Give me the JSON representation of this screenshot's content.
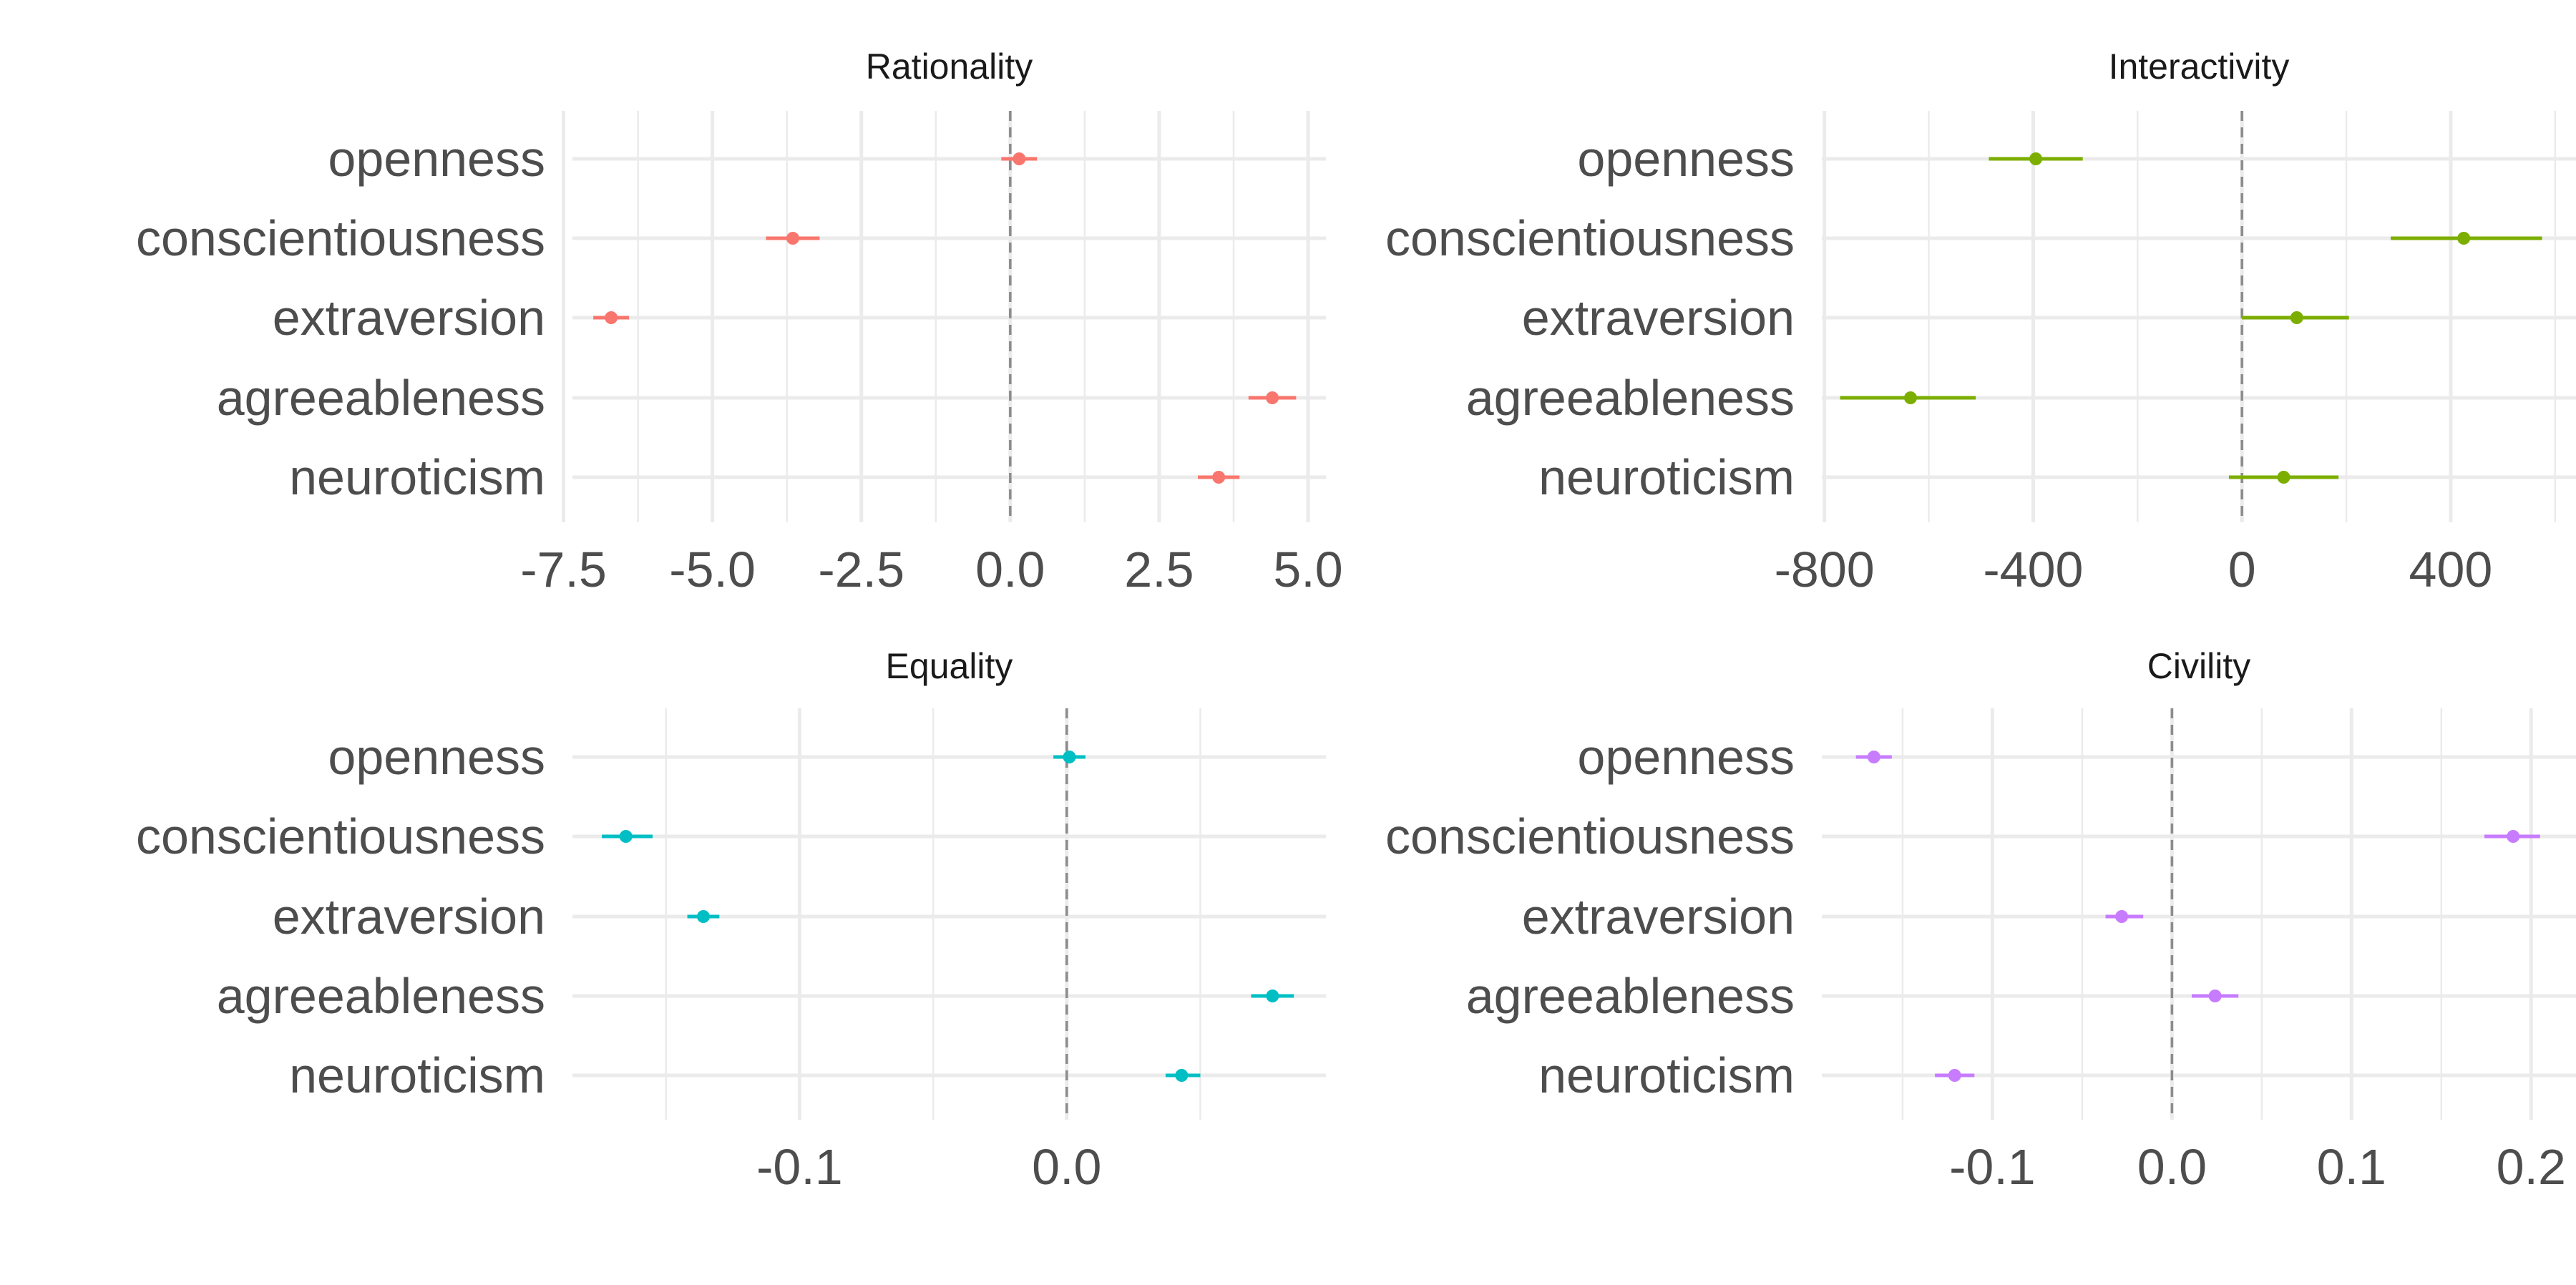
{
  "chart_data": [
    {
      "type": "scatter",
      "title": "Rationality",
      "color": "#F8766D",
      "categories": [
        "openness",
        "conscientiousness",
        "extraversion",
        "agreeableness",
        "neuroticism"
      ],
      "estimates": [
        0.15,
        -3.65,
        -6.7,
        4.4,
        3.5
      ],
      "ci_low": [
        -0.15,
        -4.1,
        -7.0,
        4.0,
        3.15
      ],
      "ci_high": [
        0.45,
        -3.2,
        -6.4,
        4.8,
        3.85
      ],
      "xlim": [
        -7.35,
        5.3
      ],
      "xticks": [
        -7.5,
        -5.0,
        -2.5,
        0.0,
        2.5,
        5.0
      ],
      "xtick_labels": [
        "-7.5",
        "-5.0",
        "-2.5",
        "0.0",
        "2.5",
        "5.0"
      ],
      "minor_ticks": [
        -6.25,
        -3.75,
        -1.25,
        1.25,
        3.75
      ],
      "reference_line": 0
    },
    {
      "type": "scatter",
      "title": "Interactivity",
      "color": "#7CAE00",
      "categories": [
        "openness",
        "conscientiousness",
        "extraversion",
        "agreeableness",
        "neuroticism"
      ],
      "estimates": [
        -395,
        425,
        105,
        -635,
        80
      ],
      "ci_low": [
        -485,
        285,
        0,
        -770,
        -25
      ],
      "ci_high": [
        -305,
        575,
        205,
        -510,
        185
      ],
      "xlim": [
        -805,
        640
      ],
      "xticks": [
        -800,
        -400,
        0,
        400
      ],
      "xtick_labels": [
        "-800",
        "-400",
        "0",
        "400"
      ],
      "minor_ticks": [
        -600,
        -200,
        200,
        600
      ],
      "reference_line": 0
    },
    {
      "type": "scatter",
      "title": "Equality",
      "color": "#00BFC4",
      "categories": [
        "openness",
        "conscientiousness",
        "extraversion",
        "agreeableness",
        "neuroticism"
      ],
      "estimates": [
        0.001,
        -0.165,
        -0.136,
        0.077,
        0.043
      ],
      "ci_low": [
        -0.005,
        -0.174,
        -0.142,
        0.069,
        0.037
      ],
      "ci_high": [
        0.007,
        -0.155,
        -0.13,
        0.085,
        0.05
      ],
      "xlim": [
        -0.185,
        0.097
      ],
      "xticks": [
        -0.1,
        0.0
      ],
      "xtick_labels": [
        "-0.1",
        "0.0"
      ],
      "minor_ticks": [
        -0.15,
        -0.05,
        0.05
      ],
      "reference_line": 0
    },
    {
      "type": "scatter",
      "title": "Civility",
      "color": "#C77CFF",
      "categories": [
        "openness",
        "conscientiousness",
        "extraversion",
        "agreeableness",
        "neuroticism"
      ],
      "estimates": [
        -0.166,
        0.19,
        -0.028,
        0.024,
        -0.121
      ],
      "ci_low": [
        -0.176,
        0.174,
        -0.037,
        0.011,
        -0.132
      ],
      "ci_high": [
        -0.156,
        0.205,
        -0.016,
        0.037,
        -0.11
      ],
      "xlim": [
        -0.195,
        0.225
      ],
      "xticks": [
        -0.1,
        0.0,
        0.1,
        0.2
      ],
      "xtick_labels": [
        "-0.1",
        "0.0",
        "0.1",
        "0.2"
      ],
      "minor_ticks": [
        -0.15,
        -0.05,
        0.05,
        0.15
      ],
      "reference_line": 0
    }
  ]
}
